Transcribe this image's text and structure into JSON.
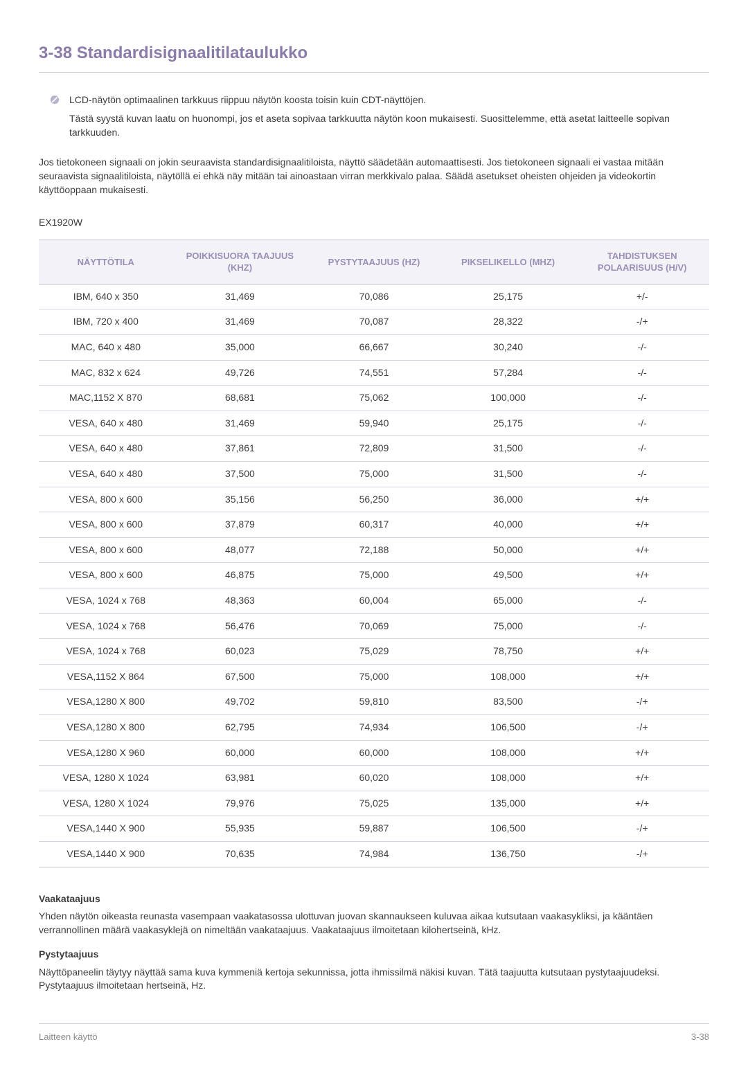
{
  "title": "3-38  Standardisignaalitilataulukko",
  "note": {
    "p1": "LCD-näytön optimaalinen tarkkuus riippuu näytön koosta toisin kuin CDT-näyttöjen.",
    "p2": "Tästä syystä kuvan laatu on huonompi, jos et aseta sopivaa tarkkuutta näytön koon mukaisesti. Suosittelemme, että asetat laitteelle sopivan tarkkuuden."
  },
  "intro": "Jos tietokoneen signaali on jokin seuraavista standardisignaalitiloista, näyttö säädetään automaattisesti. Jos tietokoneen signaali ei vastaa mitään seuraavista signaalitiloista, näytöllä ei ehkä näy mitään tai ainoastaan virran merkkivalo palaa. Säädä asetukset oheisten ohjeiden ja videokortin käyttöoppaan mukaisesti.",
  "model": "EX1920W",
  "table": {
    "columns": [
      "NÄYTTÖTILA",
      "POIKKISUORA TAAJUUS (KHZ)",
      "PYSTYTAAJUUS (HZ)",
      "PIKSELIKELLO (MHZ)",
      "TAHDISTUKSEN POLAARISUUS (H/V)"
    ],
    "rows": [
      [
        "IBM, 640 x 350",
        "31,469",
        "70,086",
        "25,175",
        "+/-"
      ],
      [
        "IBM, 720 x 400",
        "31,469",
        "70,087",
        "28,322",
        "-/+"
      ],
      [
        "MAC, 640 x 480",
        "35,000",
        "66,667",
        "30,240",
        "-/-"
      ],
      [
        "MAC, 832 x 624",
        "49,726",
        "74,551",
        "57,284",
        "-/-"
      ],
      [
        "MAC,1152 X 870",
        "68,681",
        "75,062",
        "100,000",
        "-/-"
      ],
      [
        "VESA, 640 x 480",
        "31,469",
        "59,940",
        "25,175",
        "-/-"
      ],
      [
        "VESA, 640 x 480",
        "37,861",
        "72,809",
        "31,500",
        "-/-"
      ],
      [
        "VESA, 640 x 480",
        "37,500",
        "75,000",
        "31,500",
        "-/-"
      ],
      [
        "VESA, 800 x 600",
        "35,156",
        "56,250",
        "36,000",
        "+/+"
      ],
      [
        "VESA, 800 x 600",
        "37,879",
        "60,317",
        "40,000",
        "+/+"
      ],
      [
        "VESA, 800 x 600",
        "48,077",
        "72,188",
        "50,000",
        "+/+"
      ],
      [
        "VESA, 800 x 600",
        "46,875",
        "75,000",
        "49,500",
        "+/+"
      ],
      [
        "VESA, 1024 x 768",
        "48,363",
        "60,004",
        "65,000",
        "-/-"
      ],
      [
        "VESA, 1024 x 768",
        "56,476",
        "70,069",
        "75,000",
        "-/-"
      ],
      [
        "VESA, 1024 x 768",
        "60,023",
        "75,029",
        "78,750",
        "+/+"
      ],
      [
        "VESA,1152 X 864",
        "67,500",
        "75,000",
        "108,000",
        "+/+"
      ],
      [
        "VESA,1280 X 800",
        "49,702",
        "59,810",
        "83,500",
        "-/+"
      ],
      [
        "VESA,1280 X 800",
        "62,795",
        "74,934",
        "106,500",
        "-/+"
      ],
      [
        "VESA,1280 X 960",
        "60,000",
        "60,000",
        "108,000",
        "+/+"
      ],
      [
        "VESA, 1280 X 1024",
        "63,981",
        "60,020",
        "108,000",
        "+/+"
      ],
      [
        "VESA, 1280 X 1024",
        "79,976",
        "75,025",
        "135,000",
        "+/+"
      ],
      [
        "VESA,1440 X 900",
        "55,935",
        "59,887",
        "106,500",
        "-/+"
      ],
      [
        "VESA,1440 X 900",
        "70,635",
        "74,984",
        "136,750",
        "-/+"
      ]
    ]
  },
  "defs": {
    "h_title": "Vaakataajuus",
    "h_body": "Yhden näytön oikeasta reunasta vasempaan vaakatasossa ulottuvan juovan skannaukseen kuluvaa aikaa kutsutaan vaakasykliksi, ja kääntäen verrannollinen määrä vaakasyklejä on nimeltään vaakataajuus. Vaakataajuus ilmoitetaan kilohertseinä, kHz.",
    "v_title": "Pystytaajuus",
    "v_body": "Näyttöpaneelin täytyy näyttää sama kuva kymmeniä kertoja sekunnissa, jotta ihmissilmä näkisi kuvan. Tätä taajuutta kutsutaan pystytaajuudeksi. Pystytaajuus ilmoitetaan hertseinä, Hz."
  },
  "footer": {
    "left": "Laitteen käyttö",
    "right": "3-38"
  },
  "colors": {
    "heading": "#8a7ba8",
    "th_bg": "#f3f2f7",
    "th_fg": "#9b8fb8",
    "border": "#d6d4de",
    "text": "#3d3d3d",
    "footer_text": "#8a8a8a"
  }
}
